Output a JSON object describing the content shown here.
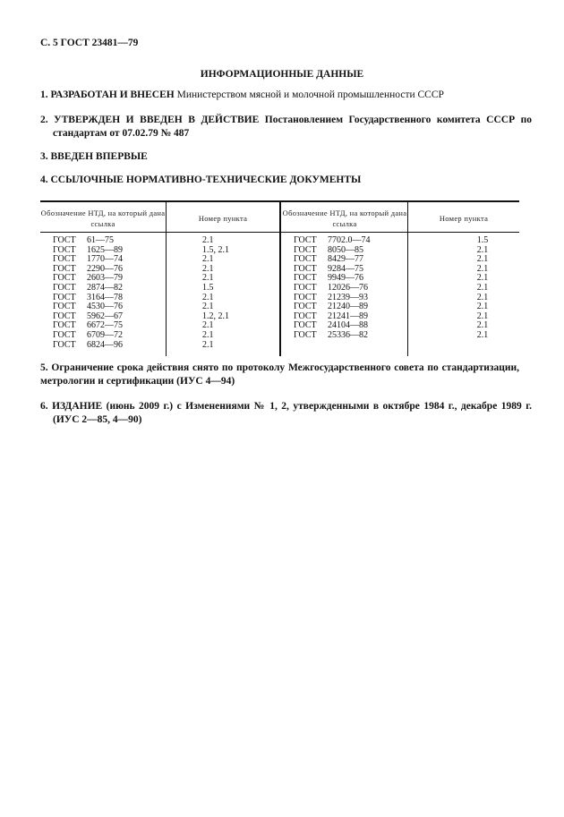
{
  "header": "С. 5 ГОСТ 23481—79",
  "title": "ИНФОРМАЦИОННЫЕ ДАННЫЕ",
  "items": [
    {
      "num": "1.",
      "lead": "РАЗРАБОТАН И ВНЕСЕН",
      "text": " Министерством мясной и молочной промышленности СССР"
    },
    {
      "num": "2.",
      "lead": "УТВЕРЖДЕН И ВВЕДЕН В ДЕЙСТВИЕ",
      "text": " Постановлением Государственного комитета СССР по стандартам от 07.02.79 № 487"
    },
    {
      "num": "3.",
      "lead": "ВВЕДЕН ВПЕРВЫЕ",
      "text": ""
    },
    {
      "num": "4.",
      "lead": "ССЫЛОЧНЫЕ НОРМАТИВНО-ТЕХНИЧЕСКИЕ ДОКУМЕНТЫ",
      "text": ""
    },
    {
      "num": "5.",
      "lead": "",
      "text": "Ограничение срока действия снято по протоколу Межгосударственного совета по стандартизации, метрологии и сертификации (ИУС 4—94)"
    },
    {
      "num": "6.",
      "lead": "ИЗДАНИЕ",
      "text": " (июнь 2009 г.) с Изменениями № 1, 2, утвержденными в октябре 1984 г., декабре 1989 г. (ИУС 2—85, 4—90)"
    }
  ],
  "table": {
    "col_doc": "Обозначение НТД, на который дана ссылка",
    "col_point": "Номер пункта",
    "left": [
      [
        "ГОСТ",
        "61—75",
        "2.1"
      ],
      [
        "ГОСТ",
        "1625—89",
        "1.5, 2.1"
      ],
      [
        "ГОСТ",
        "1770—74",
        "2.1"
      ],
      [
        "ГОСТ",
        "2290—76",
        "2.1"
      ],
      [
        "ГОСТ",
        "2603—79",
        "2.1"
      ],
      [
        "ГОСТ",
        "2874—82",
        "1.5"
      ],
      [
        "ГОСТ",
        "3164—78",
        "2.1"
      ],
      [
        "ГОСТ",
        "4530—76",
        "2.1"
      ],
      [
        "ГОСТ",
        "5962—67",
        "1.2, 2.1"
      ],
      [
        "ГОСТ",
        "6672—75",
        "2.1"
      ],
      [
        "ГОСТ",
        "6709—72",
        "2.1"
      ],
      [
        "ГОСТ",
        "6824—96",
        "2.1"
      ]
    ],
    "right": [
      [
        "ГОСТ",
        "7702.0—74",
        "1.5"
      ],
      [
        "ГОСТ",
        "8050—85",
        "2.1"
      ],
      [
        "ГОСТ",
        "8429—77",
        "2.1"
      ],
      [
        "ГОСТ",
        "9284—75",
        "2.1"
      ],
      [
        "ГОСТ",
        "9949—76",
        "2.1"
      ],
      [
        "ГОСТ",
        "12026—76",
        "2.1"
      ],
      [
        "ГОСТ",
        "21239—93",
        "2.1"
      ],
      [
        "ГОСТ",
        "21240—89",
        "2.1"
      ],
      [
        "ГОСТ",
        "21241—89",
        "2.1"
      ],
      [
        "ГОСТ",
        "24104—88",
        "2.1"
      ],
      [
        "ГОСТ",
        "25336—82",
        "2.1"
      ]
    ]
  }
}
